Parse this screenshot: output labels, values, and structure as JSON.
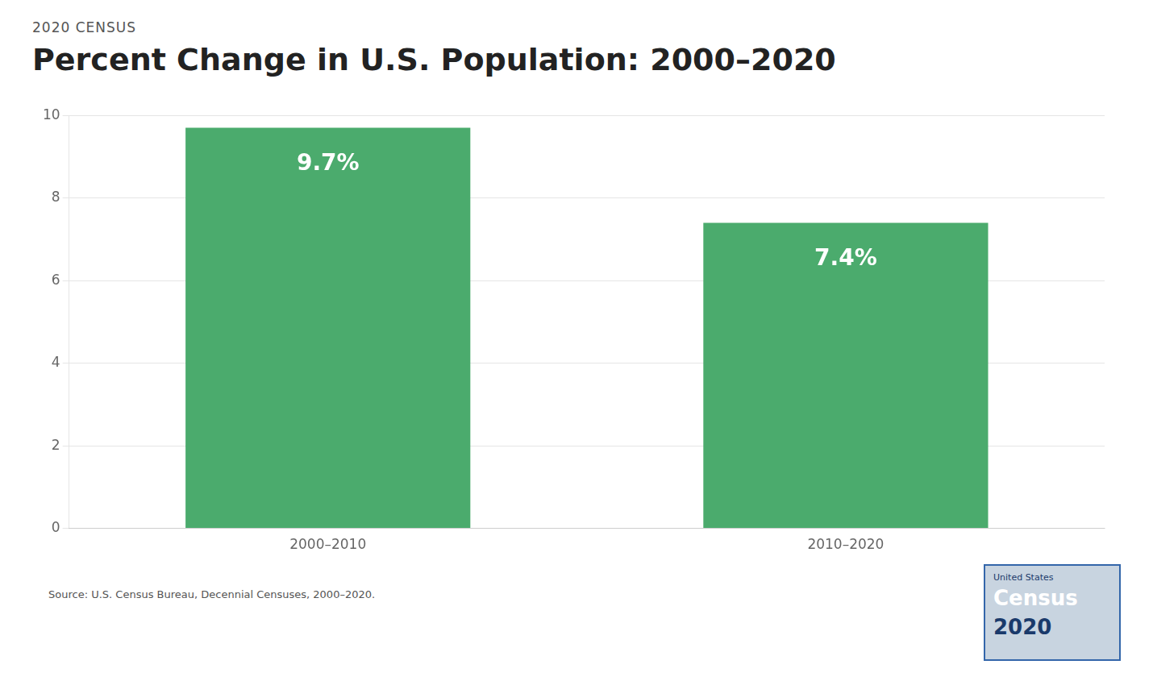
{
  "chart_data": {
    "type": "bar",
    "title": "Percent Change in U.S. Population: 2000–2020",
    "subtitle": "2020 CENSUS",
    "categories": [
      "2000–2010",
      "2010–2020"
    ],
    "values": [
      9.7,
      7.4
    ],
    "value_labels": [
      "9.7%",
      "7.4%"
    ],
    "data_labels": true,
    "color": "#4bab6d",
    "ylim": [
      0,
      10
    ],
    "yticks": [
      0,
      2,
      4,
      6,
      8,
      10
    ],
    "grid": true,
    "annotations": [
      "Source: U.S. Census Bureau, Decennial Censuses, 2000–2020.",
      "United States",
      "Census",
      "2020"
    ]
  }
}
